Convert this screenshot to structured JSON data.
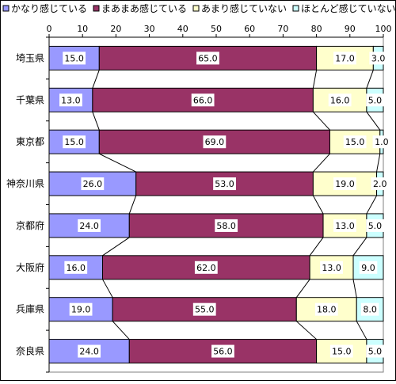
{
  "chart_data": {
    "type": "bar",
    "orientation": "horizontal",
    "stacked": true,
    "series_lines": true,
    "categories": [
      "埼玉県",
      "千葉県",
      "東京都",
      "神奈川県",
      "京都府",
      "大阪府",
      "兵庫県",
      "奈良県"
    ],
    "series": [
      {
        "name": "かなり感じている",
        "color": "#9999ff",
        "values": [
          15.0,
          13.0,
          15.0,
          26.0,
          24.0,
          16.0,
          19.0,
          24.0
        ]
      },
      {
        "name": "まあまあ感じている",
        "color": "#993366",
        "values": [
          65.0,
          66.0,
          69.0,
          53.0,
          58.0,
          62.0,
          55.0,
          56.0
        ]
      },
      {
        "name": "あまり感じていない",
        "color": "#ffffcc",
        "values": [
          17.0,
          16.0,
          15.0,
          19.0,
          13.0,
          13.0,
          18.0,
          15.0
        ]
      },
      {
        "name": "ほとんど感じていない",
        "color": "#ccffff",
        "values": [
          3.0,
          5.0,
          1.0,
          2.0,
          5.0,
          9.0,
          8.0,
          5.0
        ]
      }
    ],
    "data_labels": [
      [
        "15.0",
        "13.0",
        "15.0",
        "26.0",
        "24.0",
        "16.0",
        "19.0",
        "24.0"
      ],
      [
        "65.0",
        "66.0",
        "69.0",
        "53.0",
        "58.0",
        "62.0",
        "55.0",
        "56.0"
      ],
      [
        "17.0",
        "16.0",
        "15.0",
        "19.0",
        "13.0",
        "13.0",
        "18.0",
        "15.0"
      ],
      [
        "3.0",
        "5.0",
        "1.0",
        "2.0",
        "5.0",
        "9.0",
        "8.0",
        "5.0"
      ]
    ],
    "xlim": [
      0,
      100
    ],
    "xticks": [
      0,
      10,
      20,
      30,
      40,
      50,
      60,
      70,
      80,
      90,
      100
    ],
    "xticks_position": "top",
    "legend": "top",
    "grid": false,
    "title": "",
    "xlabel": "",
    "ylabel": ""
  }
}
